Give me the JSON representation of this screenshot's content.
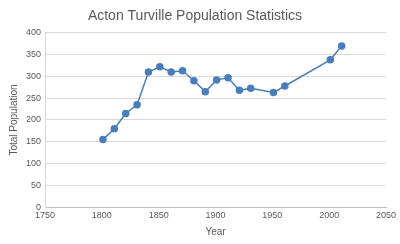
{
  "chart_data": {
    "type": "line",
    "title": "Acton Turville Population Statistics",
    "x_label": "Year",
    "y_label": "Total Population",
    "x": [
      1801,
      1811,
      1821,
      1831,
      1841,
      1851,
      1861,
      1871,
      1881,
      1891,
      1901,
      1911,
      1921,
      1931,
      1951,
      1961,
      2001,
      2011
    ],
    "values": [
      155,
      180,
      215,
      235,
      310,
      322,
      310,
      313,
      290,
      265,
      292,
      297,
      268,
      273,
      263,
      278,
      338,
      370
    ],
    "color": "#4a7ebb",
    "marker": "circle",
    "xlim": [
      1750,
      2050
    ],
    "xticks": [
      1750,
      1800,
      1850,
      1900,
      1950,
      2000,
      2050
    ],
    "ylim": [
      0,
      400
    ],
    "yticks": [
      0,
      50,
      100,
      150,
      200,
      250,
      300,
      350,
      400
    ],
    "grid": "y"
  }
}
